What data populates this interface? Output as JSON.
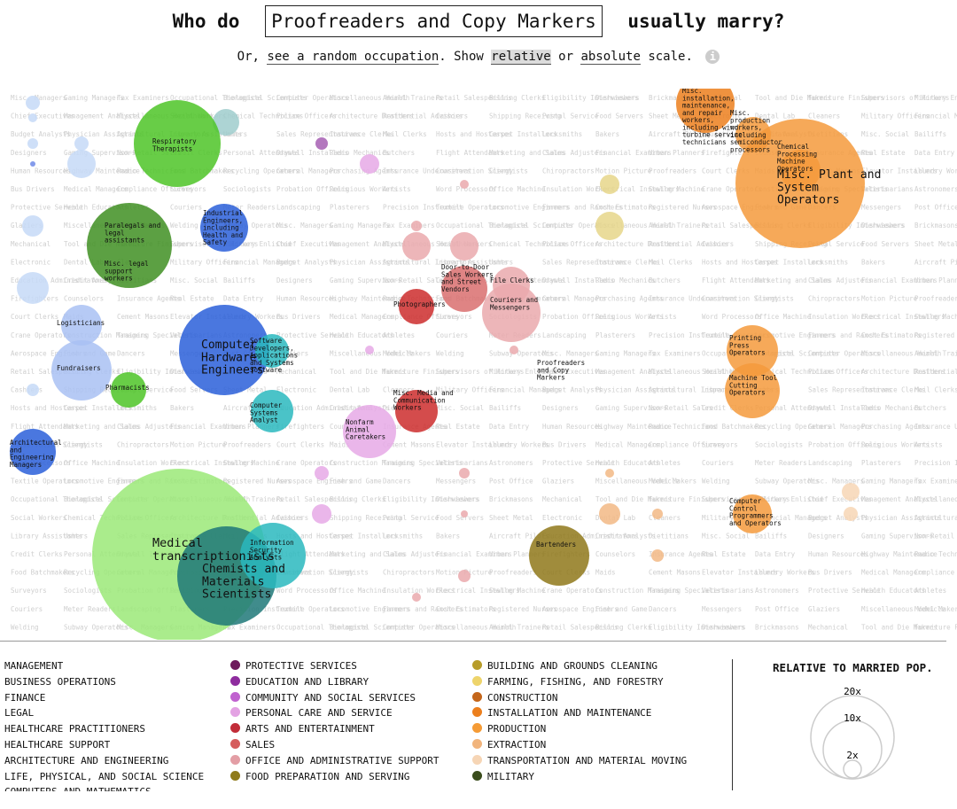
{
  "title": {
    "prefix": "Who do",
    "occupation": "Proofreaders and Copy Markers",
    "suffix": "usually marry?"
  },
  "subtitle": {
    "or": "Or,",
    "random_link": "see a random occupation",
    "show": ". Show",
    "relative": "relative",
    "or2": "or",
    "absolute": "absolute",
    "scale_word": "scale.",
    "info_icon": "i"
  },
  "colors": {
    "MANAGEMENT": "#c6d9f7",
    "BUSINESS OPERATIONS": "#a9c1f3",
    "FINANCE": "#8fa9ee",
    "LEGAL": "#6f8ae8",
    "ARCHITECTURE AND ENGINEERING": "#2a5fd9",
    "LIFE, PHYSICAL, AND SOCIAL SCIENCE": "#1f7878",
    "COMPUTERS AND MATHEMATICS": "#2ab9be",
    "HEALTHCARE PRACTITIONERS": "#4dc427",
    "HEALTHCARE SUPPORT": "#9be978",
    "LEGAL_DARK": "#3d8c1f",
    "EDUCATION AND LIBRARY": "#a65fb3",
    "PERSONAL CARE AND SERVICE": "#e6a9e6",
    "ARTS AND ENTERTAINMENT": "#cc2d2d",
    "SALES": "#d96f6f",
    "OFFICE AND ADMINISTRATIVE SUPPORT": "#eaa9ad",
    "FOOD PREPARATION AND SERVING": "#8f781a",
    "BUILDING AND GROUNDS CLEANING": "#b39d2f",
    "FARMING, FISHING, AND FORESTRY": "#e6d68a",
    "INSTALLATION AND MAINTENANCE": "#f08a24",
    "PRODUCTION": "#f59a3c",
    "EXTRACTION": "#f2b985",
    "TRANSPORTATION AND MATERIAL MOVING": "#f7d6b5"
  },
  "chart_data": {
    "type": "bubble",
    "scale_mode": "relative",
    "selected": "Proofreaders and Copy Markers",
    "bubbles": [
      {
        "label": "Respiratory Therapists",
        "category": "HEALTHCARE PRACTITIONERS",
        "ratio": 14
      },
      {
        "label": "Paralegals and legal assistants",
        "category": "LEGAL",
        "ratio": 13
      },
      {
        "label": "Misc. legal support workers",
        "category": "LEGAL",
        "ratio": 0
      },
      {
        "label": "Industrial Engineers, including Health and Safety",
        "category": "ARCHITECTURE AND ENGINEERING",
        "ratio": 5
      },
      {
        "label": "Computer Hardware Engineers",
        "category": "ARCHITECTURE AND ENGINEERING",
        "ratio": 15
      },
      {
        "label": "Software Developers, Applications and Systems Software",
        "category": "COMPUTERS AND MATHEMATICS",
        "ratio": 3
      },
      {
        "label": "Computer Systems Analyst",
        "category": "COMPUTERS AND MATHEMATICS",
        "ratio": 4
      },
      {
        "label": "Logisticians",
        "category": "BUSINESS OPERATIONS",
        "ratio": 5
      },
      {
        "label": "Fundraisers",
        "category": "BUSINESS OPERATIONS",
        "ratio": 7
      },
      {
        "label": "Pharmacists",
        "category": "HEALTHCARE PRACTITIONERS",
        "ratio": 3
      },
      {
        "label": "Architectural and Engineering Managers",
        "category": "ARCHITECTURE AND ENGINEERING",
        "ratio": 5
      },
      {
        "label": "Medical transcriptionists",
        "category": "HEALTHCARE SUPPORT",
        "ratio": 40
      },
      {
        "label": "Chemists and Materials Scientists",
        "category": "LIFE, PHYSICAL, AND SOCIAL SCIENCE",
        "ratio": 19
      },
      {
        "label": "Information Security Analysts",
        "category": "COMPUTERS AND MATHEMATICS",
        "ratio": 8
      },
      {
        "label": "Photographers",
        "category": "ARTS AND ENTERTAINMENT",
        "ratio": 3
      },
      {
        "label": "Door-to-Door Sales Workers and Street Vendors",
        "category": "SALES",
        "ratio": 5
      },
      {
        "label": "File Clerks",
        "category": "OFFICE AND ADMINISTRATIVE SUPPORT",
        "ratio": 4
      },
      {
        "label": "Couriers and Messengers",
        "category": "OFFICE AND ADMINISTRATIVE SUPPORT",
        "ratio": 8
      },
      {
        "label": "Misc. Media and Communication Workers",
        "category": "ARTS AND ENTERTAINMENT",
        "ratio": 4
      },
      {
        "label": "Nonfarm Animal Caretakers",
        "category": "PERSONAL CARE AND SERVICE",
        "ratio": 6
      },
      {
        "label": "Proofreaders and Copy Markers",
        "category": "OFFICE AND ADMINISTRATIVE SUPPORT",
        "ratio": 0
      },
      {
        "label": "Misc. installation, maintenance, and repair workers, including wind turbine service technicians",
        "category": "INSTALLATION AND MAINTENANCE",
        "ratio": 7
      },
      {
        "label": "Misc. production workers, including semiconductor processors",
        "category": "PRODUCTION",
        "ratio": 1
      },
      {
        "label": "Chemical Processing Machine Operators",
        "category": "PRODUCTION",
        "ratio": 1
      },
      {
        "label": "Misc. Plant and System Operators",
        "category": "PRODUCTION",
        "ratio": 33
      },
      {
        "label": "Printing Press Operators",
        "category": "PRODUCTION",
        "ratio": 6
      },
      {
        "label": "Machine Tool Cutting Operators",
        "category": "PRODUCTION",
        "ratio": 7
      },
      {
        "label": "Computer Control Programmers and Operators",
        "category": "PRODUCTION",
        "ratio": 3
      },
      {
        "label": "Bartenders",
        "category": "FOOD PREPARATION AND SERVING",
        "ratio": 8
      }
    ],
    "legend_title": "RELATIVE TO MARRIED POP.",
    "scale_labels": [
      "20x",
      "10x",
      "2x"
    ]
  },
  "grid_words": [
    "Misc. Managers",
    "Gaming Managers",
    "Tax Examiners",
    "Occupational Therapists",
    "Biological Scientists",
    "Computer Operators",
    "Miscellaneous Health",
    "Animal Trainers",
    "Retail Salespersons",
    "Billing Clerks",
    "Eligibility Interviewers",
    "Dishwashers",
    "Brickmasons",
    "Mechanical",
    "Tool and Die Makers",
    "Furniture Finishers",
    "Supervisors of Workers",
    "Military Enlisted",
    "Chief Executives",
    "Management Analysts",
    "Miscellaneous Healthcare",
    "Social Workers",
    "Chemical Technicians",
    "Police Officers",
    "Architecture Drafters",
    "Residential Advisors",
    "Cashiers",
    "Shipping Receiving",
    "Postal Service",
    "Food Servers",
    "Sheet Metal",
    "Electronic",
    "Dental Lab",
    "Cleaners",
    "Military Officers",
    "Financial Managers",
    "Budget Analysts",
    "Physician Assistants",
    "Agricultural Inspectors",
    "Library Assistants",
    "Ushers",
    "Sales Representatives",
    "Insurance Clerks",
    "Mail Clerks",
    "Hosts and Hostesses",
    "Carpet Installers",
    "Locksmiths",
    "Bakers",
    "Aircraft Pilots",
    "Education Administrators",
    "Credit Analysts",
    "Dietitians",
    "Misc. Social",
    "Bailiffs",
    "Designers",
    "Gaming Supervisors",
    "Non-Retail Sales",
    "Credit Clerks",
    "Personal Attendants",
    "Drywall Installers",
    "Radio Mechanics",
    "Butchers",
    "Flight Attendants",
    "Marketing and Sales",
    "Claims Adjusters",
    "Financial Examiners",
    "Urban Planners",
    "Firefighters",
    "Counselors",
    "Insurance Agents",
    "Real Estate",
    "Data Entry",
    "Human Resources",
    "Highway Maintenance",
    "Radio Technicians",
    "Food Batchmakers",
    "Recycling Operators",
    "General Managers",
    "Purchasing Agents",
    "Insurance Underwriters",
    "Conservation Scientists",
    "Clergy",
    "Chiropractors",
    "Motion Picture",
    "Proofreaders",
    "Court Clerks",
    "Maids",
    "Cement Masons",
    "Elevator Installers",
    "Laundry Workers",
    "Bus Drivers",
    "Medical Managers",
    "Compliance Officers",
    "Surveyors",
    "Sociologists",
    "Probation Officers",
    "Religious Workers",
    "Artists",
    "Word Processors",
    "Office Machine",
    "Insulation Workers",
    "Electrical Installers",
    "Sewing Machine",
    "Crane Operators",
    "Construction Managers",
    "Training Specialists",
    "Veterinarians",
    "Astronomers",
    "Protective Service",
    "Health Educators",
    "Athletes",
    "Couriers",
    "Meter Readers",
    "Landscaping",
    "Plasterers",
    "Precision Instrument",
    "Textile Operators",
    "Locomotive Engineers",
    "Farmers and Ranchers",
    "Cost Estimators",
    "Registered Nurses",
    "Aerospace Engineers",
    "Fish and Game",
    "Dancers",
    "Messengers",
    "Post Office",
    "Glaziers",
    "Miscellaneous Vehicle",
    "Model Makers",
    "Welding",
    "Subway Operators"
  ],
  "legend": {
    "col1": [
      "MANAGEMENT",
      "BUSINESS OPERATIONS",
      "FINANCE",
      "LEGAL",
      "HEALTHCARE PRACTITIONERS",
      "HEALTHCARE SUPPORT",
      "ARCHITECTURE AND ENGINEERING",
      "LIFE, PHYSICAL, AND SOCIAL SCIENCE",
      "COMPUTERS AND MATHEMATICS"
    ],
    "col2": [
      {
        "label": "PROTECTIVE SERVICES",
        "color": "#6e1a5c"
      },
      {
        "label": "EDUCATION AND LIBRARY",
        "color": "#8e2c9e"
      },
      {
        "label": "COMMUNITY AND SOCIAL SERVICES",
        "color": "#c062cf"
      },
      {
        "label": "PERSONAL CARE AND SERVICE",
        "color": "#e3a2e3"
      },
      {
        "label": "ARTS AND ENTERTAINMENT",
        "color": "#c12c38"
      },
      {
        "label": "SALES",
        "color": "#d55c5c"
      },
      {
        "label": "OFFICE AND ADMINISTRATIVE SUPPORT",
        "color": "#e39ea5"
      },
      {
        "label": "FOOD PREPARATION AND SERVING",
        "color": "#8f7a1b"
      }
    ],
    "col3": [
      {
        "label": "BUILDING AND GROUNDS CLEANING",
        "color": "#b79c29"
      },
      {
        "label": "FARMING, FISHING, AND FORESTRY",
        "color": "#eed46b"
      },
      {
        "label": "CONSTRUCTION",
        "color": "#c4661a"
      },
      {
        "label": "INSTALLATION AND MAINTENANCE",
        "color": "#ec7f1d"
      },
      {
        "label": "PRODUCTION",
        "color": "#f59b35"
      },
      {
        "label": "EXTRACTION",
        "color": "#f1b47c"
      },
      {
        "label": "TRANSPORTATION AND MATERIAL MOVING",
        "color": "#f6d5b5"
      },
      {
        "label": "MILITARY",
        "color": "#3a4c1c"
      }
    ]
  }
}
